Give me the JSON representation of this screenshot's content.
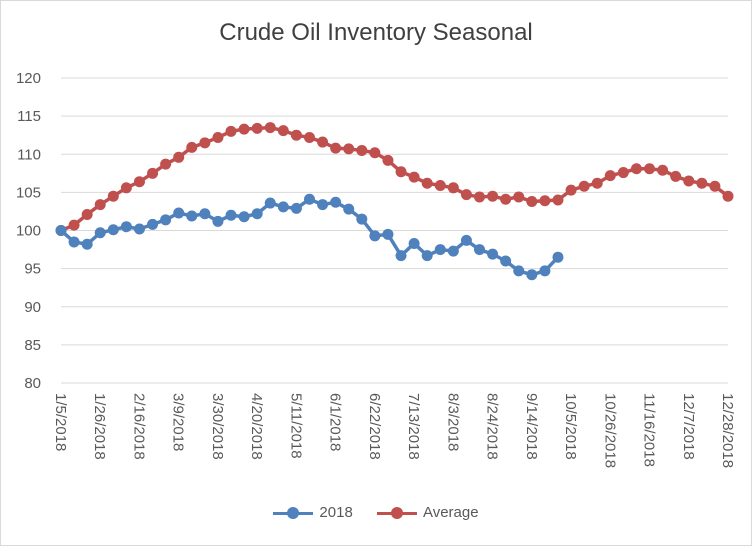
{
  "chart_data": {
    "type": "line",
    "title": "Crude Oil Inventory Seasonal",
    "xlabel": "",
    "ylabel": "",
    "ylim": [
      80,
      120
    ],
    "yticks": [
      "80",
      "85",
      "90",
      "95",
      "100",
      "105",
      "110",
      "115",
      "120"
    ],
    "xticks": [
      "1/5/2018",
      "1/26/2018",
      "2/16/2018",
      "3/9/2018",
      "3/30/2018",
      "4/20/2018",
      "5/11/2018",
      "6/1/2018",
      "6/22/2018",
      "7/13/2018",
      "8/3/2018",
      "8/24/2018",
      "9/14/2018",
      "10/5/2018",
      "10/26/2018",
      "11/16/2018",
      "12/7/2018",
      "12/28/2018"
    ],
    "grid": true,
    "legend_position": "bottom",
    "series": [
      {
        "name": "2018",
        "color": "#4f81bd",
        "values": [
          100,
          98.5,
          98.2,
          99.7,
          100.1,
          100.5,
          100.2,
          100.8,
          101.4,
          102.3,
          101.9,
          102.2,
          101.2,
          102.0,
          101.8,
          102.2,
          103.6,
          103.1,
          102.9,
          104.1,
          103.4,
          103.7,
          102.8,
          101.5,
          99.3,
          99.5,
          96.7,
          98.3,
          96.7,
          97.5,
          97.3,
          98.7,
          97.5,
          96.9,
          96.0,
          94.7,
          94.2,
          94.7,
          96.5
        ]
      },
      {
        "name": "Average",
        "color": "#c0504d",
        "values": [
          100,
          100.7,
          102.1,
          103.4,
          104.5,
          105.6,
          106.4,
          107.5,
          108.7,
          109.6,
          110.9,
          111.5,
          112.2,
          113.0,
          113.3,
          113.4,
          113.5,
          113.1,
          112.5,
          112.2,
          111.6,
          110.8,
          110.7,
          110.5,
          110.2,
          109.2,
          107.7,
          107.0,
          106.2,
          105.9,
          105.6,
          104.7,
          104.4,
          104.5,
          104.1,
          104.4,
          103.8,
          103.9,
          104.0,
          105.3,
          105.8,
          106.2,
          107.2,
          107.6,
          108.1,
          108.1,
          107.9,
          107.1,
          106.5,
          106.2,
          105.8,
          104.5
        ]
      }
    ]
  }
}
